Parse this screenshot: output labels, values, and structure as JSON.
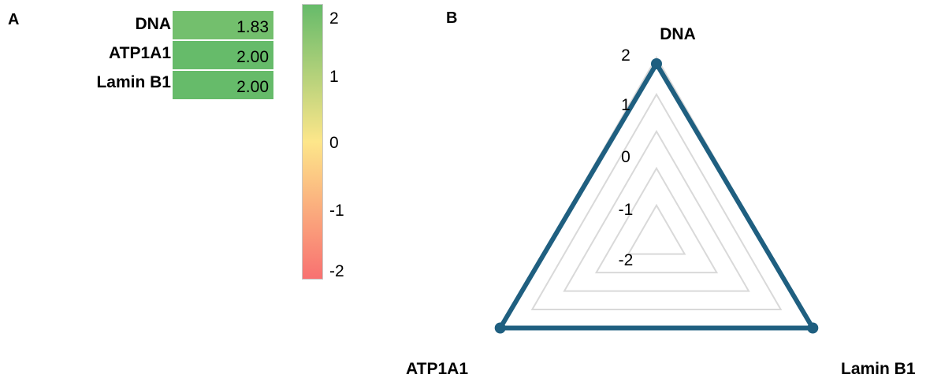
{
  "panels": {
    "a": "A",
    "b": "B"
  },
  "chart_data": [
    {
      "type": "heatmap",
      "rows": [
        "DNA",
        "ATP1A1",
        "Lamin B1"
      ],
      "values": [
        1.83,
        2.0,
        2.0
      ],
      "value_labels": [
        "1.83",
        "2.00",
        "2.00"
      ],
      "colorscale": [
        "#f87171",
        "#fde68a",
        "#66bb6a"
      ],
      "zlim": [
        -2,
        2
      ],
      "colorbar_ticks": [
        "2",
        "1",
        "0",
        "-1",
        "-2"
      ]
    },
    {
      "type": "radar",
      "axes": [
        "DNA",
        "ATP1A1",
        "Lamin B1"
      ],
      "values": [
        1.83,
        2.0,
        2.0
      ],
      "rlim": [
        -2,
        2
      ],
      "radial_ticks": [
        "2",
        "1",
        "0",
        "-1",
        "-2"
      ],
      "line_color": "#1f5f80",
      "grid_color": "#d9d9d9"
    }
  ]
}
